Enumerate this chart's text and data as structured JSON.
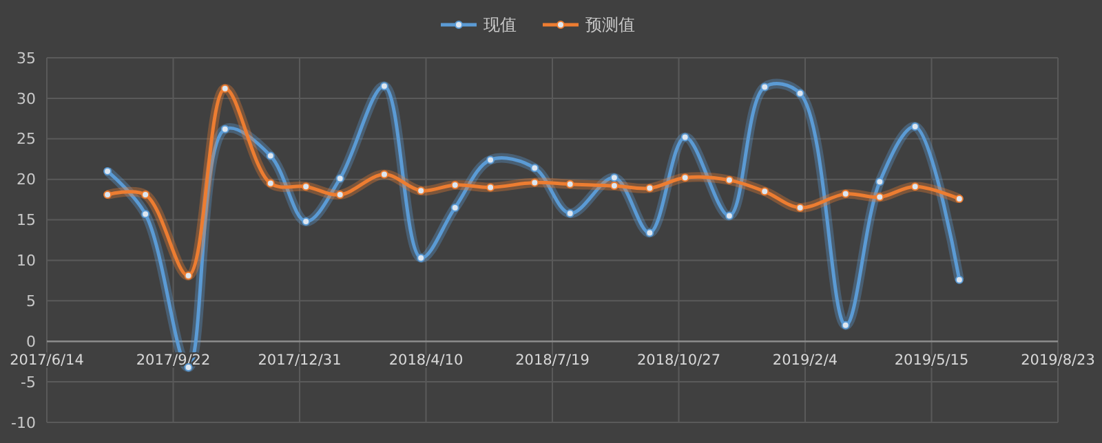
{
  "chart_data": {
    "type": "line",
    "x": [
      "2017-08-01",
      "2017-08-31",
      "2017-10-04",
      "2017-11-02",
      "2017-12-08",
      "2018-01-05",
      "2018-02-01",
      "2018-03-08",
      "2018-04-06",
      "2018-05-03",
      "2018-05-31",
      "2018-07-05",
      "2018-08-02",
      "2018-09-06",
      "2018-10-04",
      "2018-11-01",
      "2018-12-06",
      "2019-01-03",
      "2019-01-31",
      "2019-03-08",
      "2019-04-04",
      "2019-05-02",
      "2019-06-06"
    ],
    "series": [
      {
        "name": "现值",
        "color": "#5b9bd5",
        "values": [
          21.0,
          15.7,
          -3.2,
          26.2,
          22.9,
          14.8,
          20.1,
          31.5,
          10.3,
          16.5,
          22.4,
          21.4,
          15.8,
          20.2,
          13.4,
          25.2,
          15.5,
          31.4,
          30.6,
          2.0,
          19.7,
          26.5,
          7.6
        ]
      },
      {
        "name": "预测值",
        "color": "#ed7d31",
        "values": [
          18.1,
          18.1,
          8.1,
          31.2,
          19.5,
          19.1,
          18.1,
          20.6,
          18.6,
          19.3,
          19.0,
          19.6,
          19.4,
          19.2,
          18.9,
          20.2,
          19.9,
          18.5,
          16.5,
          18.2,
          17.8,
          19.1,
          17.6
        ]
      }
    ],
    "xlim": [
      "2017-06-14",
      "2019-08-23"
    ],
    "xticks": [
      {
        "value": "2017-06-14",
        "label": "2017/6/14"
      },
      {
        "value": "2017-09-22",
        "label": "2017/9/22"
      },
      {
        "value": "2017-12-31",
        "label": "2017/12/31"
      },
      {
        "value": "2018-04-10",
        "label": "2018/4/10"
      },
      {
        "value": "2018-07-19",
        "label": "2018/7/19"
      },
      {
        "value": "2018-10-27",
        "label": "2018/10/27"
      },
      {
        "value": "2019-02-04",
        "label": "2019/2/4"
      },
      {
        "value": "2019-05-15",
        "label": "2019/5/15"
      },
      {
        "value": "2019-08-23",
        "label": "2019/8/23"
      }
    ],
    "ylim": [
      -10,
      35
    ],
    "yticks": [
      -10,
      -5,
      0,
      5,
      10,
      15,
      20,
      25,
      30,
      35
    ],
    "grid": true,
    "legend": "top",
    "marker": "circle",
    "line_style": "solid"
  }
}
